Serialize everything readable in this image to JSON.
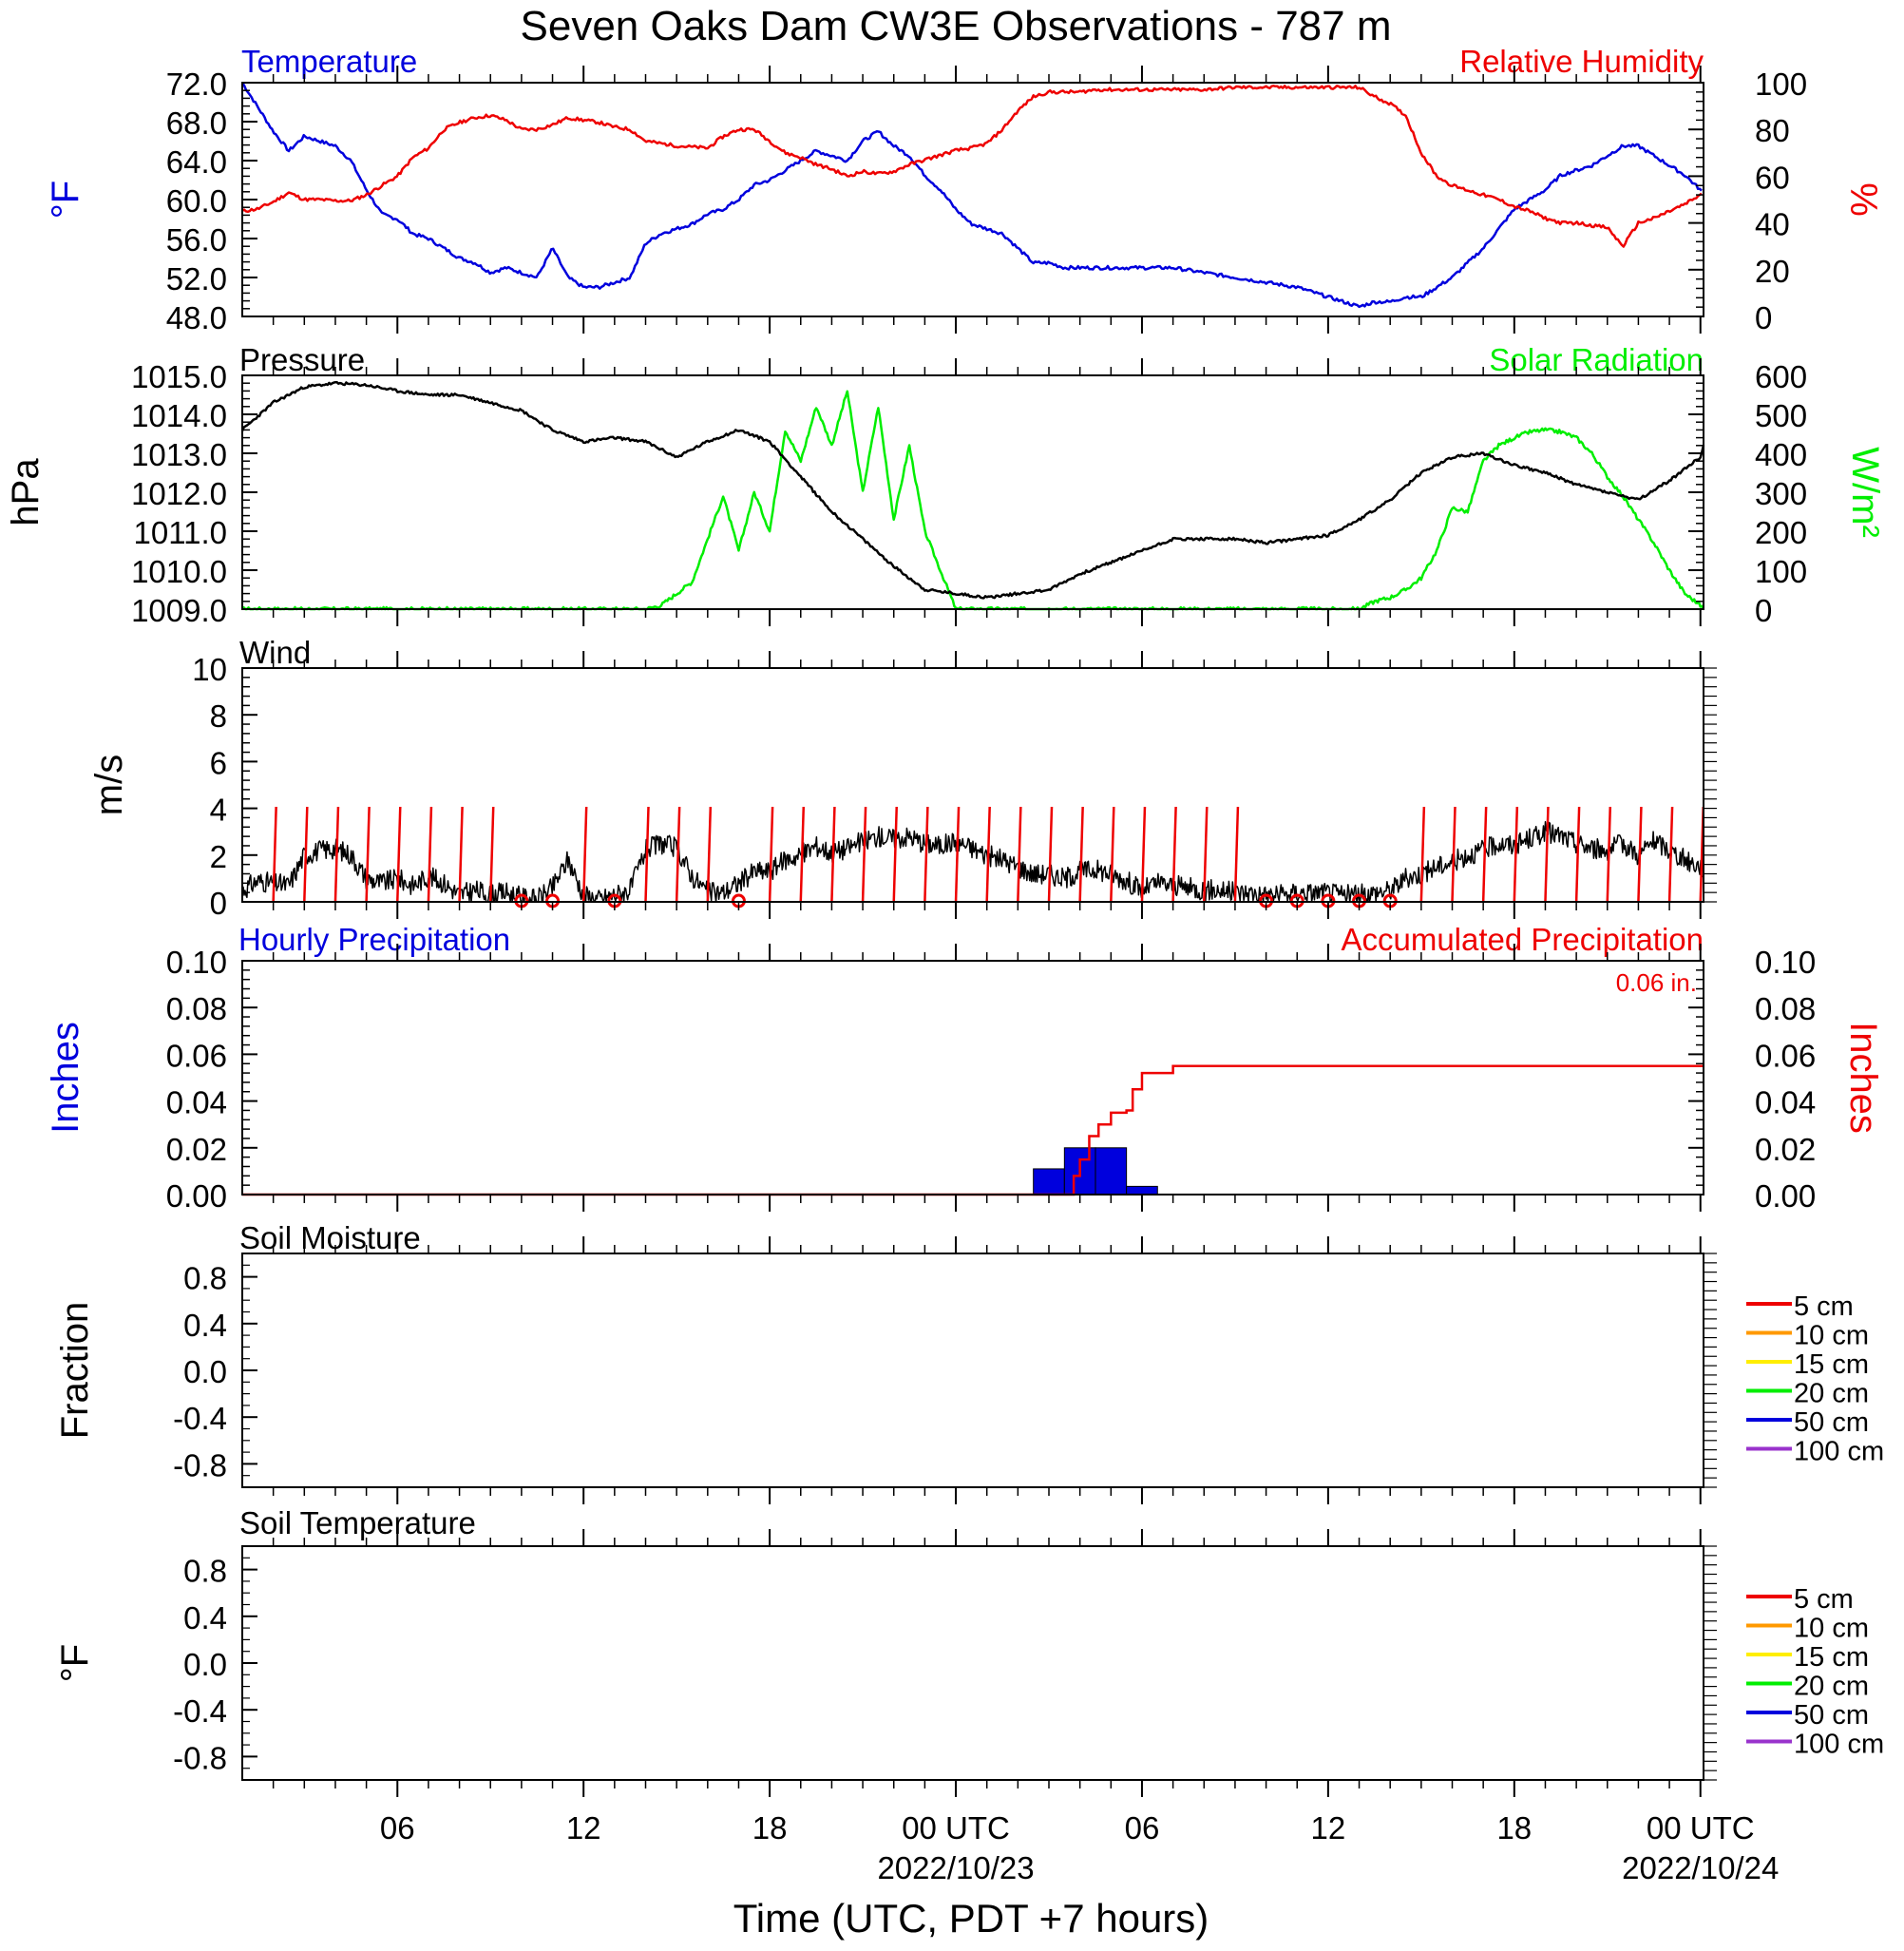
{
  "title": "Seven Oaks Dam CW3E Observations - 787 m",
  "x_axis": {
    "label": "Time (UTC, PDT +7 hours)",
    "ticks": [
      {
        "t": 6,
        "label": "06"
      },
      {
        "t": 12,
        "label": "12"
      },
      {
        "t": 18,
        "label": "18"
      },
      {
        "t": 24,
        "label": "00 UTC"
      },
      {
        "t": 30,
        "label": "06"
      },
      {
        "t": 36,
        "label": "12"
      },
      {
        "t": 42,
        "label": "18"
      },
      {
        "t": 48,
        "label": "00 UTC"
      }
    ],
    "dates": [
      {
        "t": 24,
        "label": "2022/10/23"
      },
      {
        "t": 48,
        "label": "2022/10/24"
      }
    ],
    "range_hours": [
      1,
      48.1
    ]
  },
  "panels": {
    "temp_rh": {
      "left_title": "Temperature",
      "right_title": "Relative Humidity",
      "left_ylabel": "°F",
      "right_ylabel": "%",
      "left_ticks": [
        "72.0",
        "68.0",
        "64.0",
        "60.0",
        "56.0",
        "52.0",
        "48.0"
      ],
      "right_ticks": [
        "100",
        "80",
        "60",
        "40",
        "20",
        "0"
      ]
    },
    "pressure_solar": {
      "left_title": "Pressure",
      "right_title": "Solar Radiation",
      "left_ylabel": "hPa",
      "right_ylabel": "W/m²",
      "left_ticks": [
        "1015.0",
        "1014.0",
        "1013.0",
        "1012.0",
        "1011.0",
        "1010.0",
        "1009.0"
      ],
      "right_ticks": [
        "600",
        "500",
        "400",
        "300",
        "200",
        "100",
        "0"
      ]
    },
    "wind": {
      "left_title": "Wind",
      "left_ylabel": "m/s",
      "left_ticks": [
        "10",
        "8",
        "6",
        "4",
        "2",
        "0"
      ]
    },
    "precip": {
      "left_title": "Hourly Precipitation",
      "right_title": "Accumulated Precipitation",
      "total_label": "0.06 in.",
      "left_ylabel": "Inches",
      "right_ylabel": "Inches",
      "left_ticks": [
        "0.10",
        "0.08",
        "0.06",
        "0.04",
        "0.02",
        "0.00"
      ],
      "right_ticks": [
        "0.10",
        "0.08",
        "0.06",
        "0.04",
        "0.02",
        "0.00"
      ]
    },
    "soil_moisture": {
      "left_title": "Soil Moisture",
      "left_ylabel": "Fraction",
      "left_ticks": [
        "0.8",
        "0.4",
        "0.0",
        "-0.4",
        "-0.8"
      ],
      "legend": [
        "5 cm",
        "10 cm",
        "15 cm",
        "20 cm",
        "50 cm",
        "100 cm"
      ]
    },
    "soil_temp": {
      "left_title": "Soil Temperature",
      "left_ylabel": "°F",
      "left_ticks": [
        "0.8",
        "0.4",
        "0.0",
        "-0.4",
        "-0.8"
      ],
      "legend": [
        "5 cm",
        "10 cm",
        "15 cm",
        "20 cm",
        "50 cm",
        "100 cm"
      ]
    }
  },
  "colors": {
    "temperature": "#0000dd",
    "relative_humidity": "#ee0000",
    "pressure": "#000000",
    "solar": "#00ee00",
    "wind": "#000000",
    "wind_barb": "#ee0000",
    "hourly_precip": "#0000dd",
    "accum_precip": "#ee0000",
    "legend": [
      "#ee0000",
      "#ff9900",
      "#ffee00",
      "#00ee00",
      "#0000dd",
      "#9933cc"
    ]
  },
  "chart_data": [
    {
      "type": "line",
      "name": "Temperature",
      "units": "°F",
      "ylim": [
        48,
        72
      ],
      "x": [
        1,
        1.5,
        2,
        2.5,
        3,
        3.5,
        4,
        4.5,
        5,
        5.5,
        6,
        6.5,
        7,
        7.5,
        8,
        8.5,
        9,
        9.5,
        10,
        10.5,
        11,
        11.5,
        12,
        12.5,
        13,
        13.5,
        14,
        14.5,
        15,
        15.5,
        16,
        16.5,
        17,
        17.5,
        18,
        18.5,
        19,
        19.5,
        20,
        20.5,
        21,
        21.5,
        22,
        22.5,
        23,
        23.5,
        24,
        24.5,
        25,
        25.5,
        26,
        26.5,
        27,
        27.5,
        28,
        28.5,
        29,
        29.5,
        30,
        31,
        32,
        33,
        34,
        35,
        36,
        36.5,
        37,
        37.5,
        38,
        38.5,
        39,
        39.5,
        40,
        40.5,
        41,
        41.5,
        42,
        42.5,
        43,
        43.5,
        44,
        44.5,
        45,
        45.5,
        46,
        46.5,
        47,
        47.5,
        48,
        48.1
      ],
      "values": [
        72,
        69.5,
        67,
        65,
        66.5,
        66,
        65.5,
        64,
        61,
        58.5,
        58,
        56.5,
        56,
        55,
        54,
        53.5,
        52.5,
        53,
        52.5,
        52,
        55,
        52,
        51,
        51,
        51.5,
        52,
        55.5,
        56.5,
        57,
        57.5,
        58.5,
        59,
        60,
        61.5,
        62,
        63,
        64,
        65,
        64.5,
        64,
        66,
        67,
        65.5,
        64.5,
        62.5,
        61,
        59,
        57.5,
        57,
        56.5,
        55,
        53.5,
        53.5,
        53,
        53,
        53,
        53,
        53,
        53,
        53,
        52.5,
        52,
        51.5,
        51,
        50,
        49.5,
        49,
        49.5,
        49.5,
        50,
        50,
        51,
        52,
        53.5,
        55,
        57,
        59,
        60,
        61,
        62.5,
        63,
        63.5,
        64.5,
        65.5,
        65.5,
        64.5,
        63.5,
        62.5,
        61,
        60.5
      ]
    },
    {
      "type": "line",
      "name": "Relative Humidity",
      "units": "%",
      "ylim": [
        0,
        100
      ],
      "x": [
        1,
        1.5,
        2,
        2.5,
        3,
        3.5,
        4,
        4.5,
        5,
        5.5,
        6,
        6.5,
        7,
        7.5,
        8,
        8.5,
        9,
        9.5,
        10,
        10.5,
        11,
        11.5,
        12,
        12.5,
        13,
        13.5,
        14,
        14.5,
        15,
        15.5,
        16,
        16.5,
        17,
        17.5,
        18,
        18.5,
        19,
        19.5,
        20,
        20.5,
        21,
        21.5,
        22,
        22.5,
        23,
        23.5,
        24,
        24.5,
        25,
        25.5,
        26,
        26.5,
        27,
        27.5,
        28,
        28.5,
        29,
        29.5,
        30,
        31,
        32,
        33,
        34,
        35,
        36,
        36.5,
        37,
        37.5,
        38,
        38.5,
        39,
        39.5,
        40,
        40.5,
        41,
        41.5,
        42,
        42.5,
        43,
        43.5,
        44,
        44.5,
        45,
        45.5,
        46,
        46.5,
        47,
        47.5,
        48,
        48.1
      ],
      "values": [
        45,
        46,
        49,
        53,
        50,
        50,
        49.5,
        49.5,
        52,
        56,
        60,
        68,
        72,
        80,
        83,
        85,
        86,
        84,
        80,
        80,
        82,
        85,
        84,
        83,
        81,
        80,
        75,
        74,
        73,
        72.5,
        72,
        77,
        80,
        80,
        75,
        70,
        68,
        65,
        63,
        60,
        62,
        61,
        62,
        65,
        67,
        69,
        71,
        72,
        74,
        80,
        88,
        94,
        96,
        96,
        96,
        97,
        97,
        97,
        97,
        97,
        97,
        98,
        98,
        98,
        98,
        98,
        98,
        94,
        91,
        86,
        70,
        60,
        56,
        54,
        52,
        50,
        47,
        45,
        42,
        40,
        40,
        39,
        38,
        30,
        40,
        42,
        45,
        48,
        52,
        54
      ]
    },
    {
      "type": "line",
      "name": "Pressure",
      "units": "hPa",
      "ylim": [
        1009,
        1015
      ],
      "x": [
        1,
        2,
        3,
        4,
        5,
        6,
        7,
        8,
        9,
        10,
        11,
        12,
        13,
        14,
        15,
        16,
        17,
        18,
        19,
        20,
        21,
        22,
        23,
        24,
        25,
        26,
        27,
        28,
        29,
        30,
        31,
        32,
        33,
        34,
        35,
        36,
        37,
        38,
        39,
        40,
        41,
        42,
        43,
        44,
        45,
        46,
        47,
        48,
        48.1
      ],
      "values": [
        1013.6,
        1014.3,
        1014.7,
        1014.8,
        1014.75,
        1014.6,
        1014.5,
        1014.5,
        1014.3,
        1014.1,
        1013.6,
        1013.3,
        1013.4,
        1013.3,
        1012.9,
        1013.3,
        1013.6,
        1013.3,
        1012.4,
        1011.5,
        1010.8,
        1010.1,
        1009.5,
        1009.4,
        1009.3,
        1009.4,
        1009.5,
        1009.9,
        1010.2,
        1010.5,
        1010.8,
        1010.8,
        1010.8,
        1010.7,
        1010.8,
        1010.9,
        1011.3,
        1011.8,
        1012.5,
        1012.9,
        1013.0,
        1012.7,
        1012.5,
        1012.2,
        1012.0,
        1011.8,
        1012.3,
        1012.9,
        1013.2
      ]
    },
    {
      "type": "line",
      "name": "Solar Radiation",
      "units": "W/m²",
      "ylim": [
        0,
        600
      ],
      "x": [
        1,
        14,
        14.5,
        15,
        15.5,
        16,
        16.5,
        17,
        17.5,
        18,
        18.5,
        19,
        19.5,
        20,
        20.5,
        21,
        21.5,
        22,
        22.5,
        23,
        24,
        37,
        37.5,
        38,
        38.5,
        39,
        39.5,
        40,
        40.5,
        41,
        41.5,
        42,
        42.5,
        43,
        43.5,
        44,
        44.5,
        45,
        45.5,
        46,
        46.5,
        47,
        47.5,
        48,
        48.1
      ],
      "values": [
        0,
        0,
        10,
        40,
        70,
        180,
        290,
        150,
        300,
        200,
        460,
        380,
        520,
        420,
        560,
        300,
        520,
        230,
        420,
        200,
        0,
        0,
        20,
        30,
        50,
        80,
        150,
        260,
        250,
        380,
        420,
        440,
        455,
        460,
        455,
        440,
        400,
        340,
        290,
        230,
        170,
        100,
        40,
        10,
        0
      ]
    },
    {
      "type": "line",
      "name": "Wind",
      "units": "m/s",
      "ylim": [
        0,
        10
      ],
      "x": [
        1,
        1.5,
        2,
        2.5,
        3,
        3.5,
        4,
        4.5,
        5,
        5.5,
        6,
        6.5,
        7,
        7.5,
        8,
        8.5,
        9,
        9.5,
        10,
        10.5,
        11,
        11.5,
        12,
        12.5,
        13,
        13.5,
        14,
        14.5,
        15,
        15.5,
        16,
        16.5,
        17,
        17.5,
        18,
        18.5,
        19,
        19.5,
        20,
        20.5,
        21,
        21.5,
        22,
        22.5,
        23,
        23.5,
        24,
        24.5,
        25,
        25.5,
        26,
        26.5,
        27,
        27.5,
        28,
        28.5,
        29,
        29.5,
        30,
        30.5,
        31,
        31.5,
        32,
        32.5,
        33,
        33.5,
        34,
        34.5,
        35,
        35.5,
        36,
        36.5,
        37,
        37.5,
        38,
        38.5,
        39,
        39.5,
        40,
        40.5,
        41,
        41.5,
        42,
        42.5,
        43,
        43.5,
        44,
        44.5,
        45,
        45.5,
        46,
        46.5,
        47,
        47.5,
        48,
        48.1
      ],
      "values": [
        0.5,
        0.9,
        0.8,
        0.7,
        2.0,
        2.2,
        2.3,
        2.0,
        1.0,
        0.8,
        1.0,
        0.7,
        1.1,
        0.8,
        0.3,
        0.5,
        0.3,
        0.4,
        0.2,
        0.1,
        0.6,
        1.8,
        0.3,
        0.1,
        0.3,
        0.5,
        2.2,
        2.5,
        2.3,
        1.1,
        0.4,
        0.4,
        0.8,
        1.3,
        1.3,
        1.8,
        2.0,
        2.4,
        2.1,
        2.3,
        2.6,
        2.8,
        2.7,
        2.8,
        2.5,
        2.4,
        2.6,
        2.3,
        2.0,
        1.8,
        1.5,
        1.2,
        1.2,
        1.0,
        1.3,
        1.4,
        1.2,
        0.9,
        0.5,
        0.8,
        0.7,
        0.6,
        0.5,
        0.5,
        0.4,
        0.4,
        0.3,
        0.3,
        0.4,
        0.4,
        0.4,
        0.3,
        0.3,
        0.4,
        0.5,
        1.0,
        1.2,
        1.5,
        1.7,
        2.0,
        2.2,
        2.5,
        2.4,
        2.7,
        3.0,
        2.8,
        2.5,
        2.3,
        2.2,
        2.5,
        2.0,
        2.6,
        2.2,
        1.8,
        1.5,
        1.4
      ]
    },
    {
      "type": "bar",
      "name": "Hourly Precipitation",
      "units": "Inches",
      "ylim": [
        0,
        0.1
      ],
      "x": [
        27,
        28,
        29,
        30
      ],
      "values": [
        0.011,
        0.02,
        0.02,
        0.0035
      ]
    },
    {
      "type": "line",
      "name": "Accumulated Precipitation",
      "units": "Inches",
      "ylim": [
        0,
        0.1
      ],
      "x": [
        1,
        27.5,
        27.8,
        28,
        28.3,
        28.6,
        29,
        29.5,
        29.7,
        30,
        30.5,
        31,
        48.1
      ],
      "values": [
        0,
        0,
        0.008,
        0.015,
        0.025,
        0.03,
        0.035,
        0.036,
        0.045,
        0.052,
        0.052,
        0.055,
        0.055
      ]
    }
  ]
}
